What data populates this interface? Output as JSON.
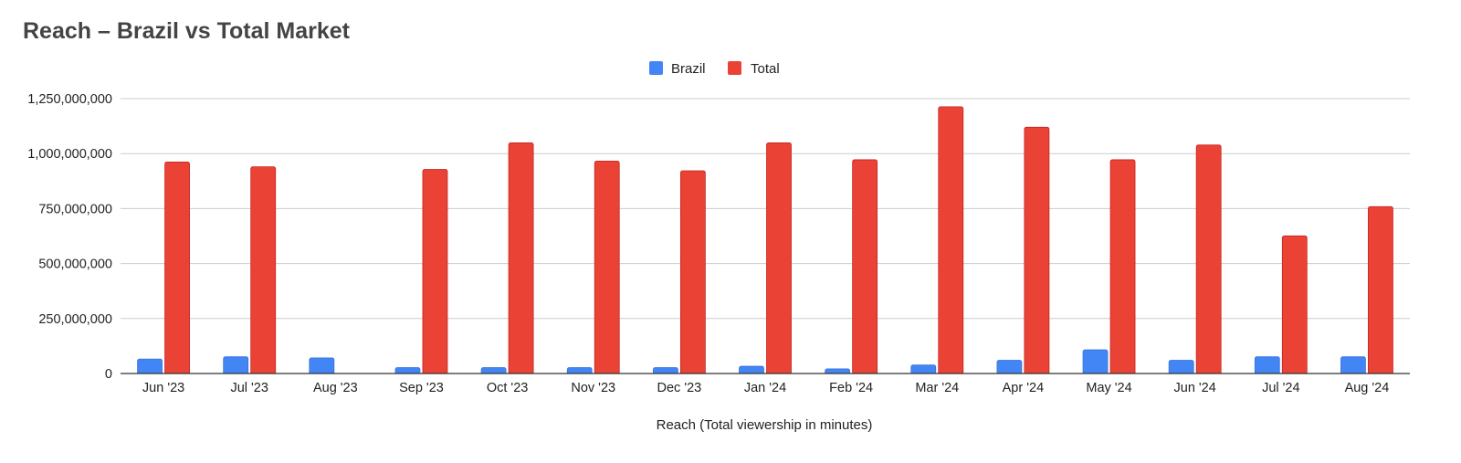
{
  "colors": {
    "brazil": "#4285f4",
    "total": "#ea4335",
    "grid": "#cccccc",
    "axis": "#333333",
    "title": "#444444",
    "text": "#222222"
  },
  "chart_data": {
    "type": "bar",
    "title": "Reach – Brazil vs Total Market",
    "xlabel": "Reach (Total viewership in minutes)",
    "ylabel": "",
    "ylim": [
      0,
      1250000000
    ],
    "yticks": [
      0,
      250000000,
      500000000,
      750000000,
      1000000000,
      1250000000
    ],
    "ytick_labels": [
      "0",
      "250,000,000",
      "500,000,000",
      "750,000,000",
      "1,000,000,000",
      "1,250,000,000"
    ],
    "grid": true,
    "legend_position": "top-center",
    "categories": [
      "Jun '23",
      "Jul '23",
      "Aug '23",
      "Sep '23",
      "Oct '23",
      "Nov '23",
      "Dec '23",
      "Jan '24",
      "Feb '24",
      "Mar '24",
      "Apr '24",
      "May '24",
      "Jun '24",
      "Jul '24",
      "Aug '24"
    ],
    "series": [
      {
        "name": "Brazil",
        "color": "#4285f4",
        "values": [
          66000000,
          76000000,
          71000000,
          27000000,
          27000000,
          27000000,
          27000000,
          33000000,
          21000000,
          39000000,
          60000000,
          108000000,
          60000000,
          76000000,
          76000000
        ]
      },
      {
        "name": "Total",
        "color": "#ea4335",
        "values": [
          962000000,
          940000000,
          0,
          928000000,
          1049000000,
          966000000,
          922000000,
          1049000000,
          972000000,
          1213000000,
          1120000000,
          972000000,
          1039000000,
          626000000,
          759000000
        ]
      }
    ]
  }
}
